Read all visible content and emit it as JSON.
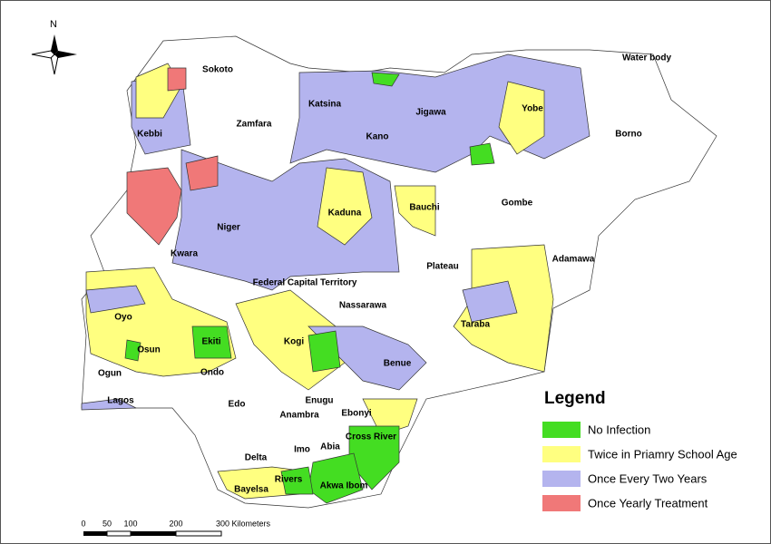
{
  "map": {
    "north_label": "N",
    "states": [
      "Sokoto",
      "Zamfara",
      "Katsina",
      "Kebbi",
      "Jigawa",
      "Kano",
      "Yobe",
      "Borno",
      "Water body",
      "Kaduna",
      "Bauchi",
      "Gombe",
      "Niger",
      "Kwara",
      "Plateau",
      "Adamawa",
      "Federal Capital Territory",
      "Nassarawa",
      "Oyo",
      "Taraba",
      "Kogi",
      "Osun",
      "Ekiti",
      "Ogun",
      "Ondo",
      "Benue",
      "Edo",
      "Enugu",
      "Lagos",
      "Ebonyi",
      "Anambra",
      "Imo",
      "Abia",
      "Cross River",
      "Delta",
      "Rivers",
      "Bayelsa",
      "Akwa Ibom"
    ],
    "legend": {
      "title": "Legend",
      "items": [
        {
          "label": "No Infection",
          "color": "#44dd22"
        },
        {
          "label": "Twice in Priamry School Age",
          "color": "#ffff80"
        },
        {
          "label": "Once Every Two Years",
          "color": "#b4b4ee"
        },
        {
          "label": "Once Yearly Treatment",
          "color": "#f07878"
        }
      ]
    },
    "scale_bar": {
      "labels": [
        "0",
        "50",
        "100",
        "200",
        "300 Kilometers"
      ]
    }
  }
}
